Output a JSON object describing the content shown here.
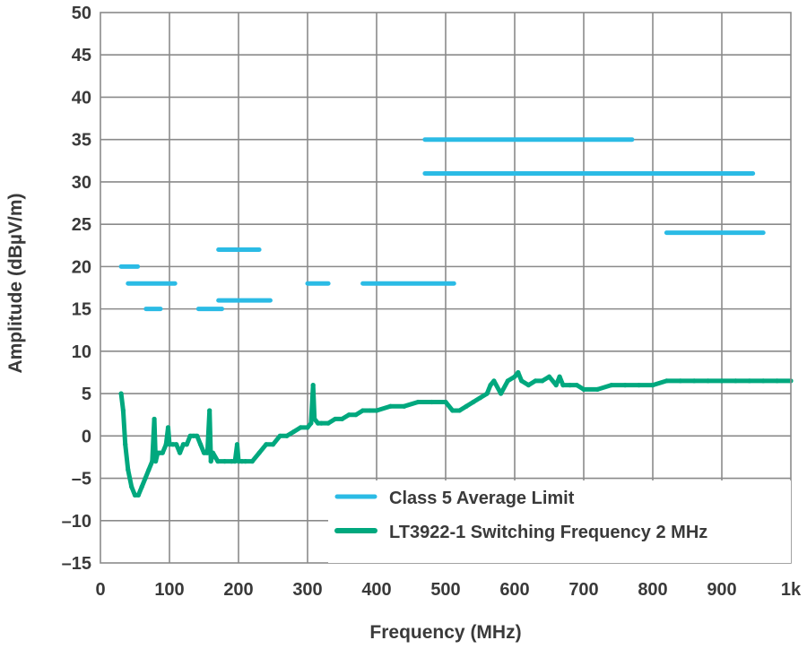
{
  "chart_data": {
    "type": "line",
    "title": "",
    "xlabel": "Frequency (MHz)",
    "ylabel": "Amplitude (dBµV/m)",
    "xlim": [
      0,
      1000
    ],
    "ylim": [
      -15,
      50
    ],
    "grid": true,
    "legend_position": "bottom-right",
    "x_ticks": [
      {
        "value": 0,
        "label": "0"
      },
      {
        "value": 100,
        "label": "100"
      },
      {
        "value": 200,
        "label": "200"
      },
      {
        "value": 300,
        "label": "300"
      },
      {
        "value": 400,
        "label": "400"
      },
      {
        "value": 500,
        "label": "500"
      },
      {
        "value": 600,
        "label": "600"
      },
      {
        "value": 700,
        "label": "700"
      },
      {
        "value": 800,
        "label": "800"
      },
      {
        "value": 900,
        "label": "900"
      },
      {
        "value": 1000,
        "label": "1k"
      }
    ],
    "y_ticks": [
      {
        "value": 50,
        "label": "50"
      },
      {
        "value": 45,
        "label": "45"
      },
      {
        "value": 40,
        "label": "40"
      },
      {
        "value": 35,
        "label": "35"
      },
      {
        "value": 30,
        "label": "30"
      },
      {
        "value": 25,
        "label": "25"
      },
      {
        "value": 20,
        "label": "20"
      },
      {
        "value": 15,
        "label": "15"
      },
      {
        "value": 10,
        "label": "10"
      },
      {
        "value": 5,
        "label": "5"
      },
      {
        "value": 0,
        "label": "0"
      },
      {
        "value": -5,
        "label": "–5"
      },
      {
        "value": -10,
        "label": "–10"
      },
      {
        "value": -15,
        "label": "–15"
      }
    ],
    "series": [
      {
        "name": "Class 5 Average Limit",
        "color": "#2bbbe5",
        "segments": [
          {
            "x": [
              30,
              54
            ],
            "y": 20
          },
          {
            "x": [
              40,
              108
            ],
            "y": 18
          },
          {
            "x": [
              66,
              87
            ],
            "y": 15
          },
          {
            "x": [
              142,
              176
            ],
            "y": 15
          },
          {
            "x": [
              171,
              246
            ],
            "y": 16
          },
          {
            "x": [
              171,
              230
            ],
            "y": 22
          },
          {
            "x": [
              300,
              330
            ],
            "y": 18
          },
          {
            "x": [
              380,
              512
            ],
            "y": 18
          },
          {
            "x": [
              470,
              770
            ],
            "y": 35
          },
          {
            "x": [
              470,
              945
            ],
            "y": 31
          },
          {
            "x": [
              820,
              960
            ],
            "y": 24
          }
        ]
      },
      {
        "name": "LT3922-1 Switching Frequency 2 MHz",
        "color": "#00a87e",
        "x": [
          30,
          33,
          36,
          40,
          45,
          50,
          55,
          60,
          65,
          70,
          75,
          78,
          80,
          83,
          86,
          90,
          95,
          98,
          100,
          105,
          110,
          115,
          120,
          125,
          130,
          135,
          140,
          145,
          150,
          155,
          158,
          160,
          163,
          170,
          180,
          190,
          195,
          198,
          200,
          205,
          210,
          220,
          230,
          240,
          250,
          260,
          270,
          280,
          290,
          300,
          305,
          308,
          310,
          315,
          320,
          330,
          340,
          350,
          360,
          370,
          380,
          390,
          400,
          420,
          440,
          460,
          480,
          500,
          510,
          520,
          530,
          540,
          550,
          560,
          565,
          570,
          580,
          590,
          600,
          605,
          610,
          620,
          630,
          640,
          650,
          660,
          665,
          670,
          680,
          690,
          700,
          720,
          740,
          760,
          780,
          800,
          820,
          840,
          860,
          880,
          900,
          920,
          940,
          960,
          980,
          1000
        ],
        "y": [
          5,
          3,
          -1,
          -4,
          -6,
          -7,
          -7,
          -6,
          -5,
          -4,
          -3,
          2,
          -3,
          -2,
          -2,
          -2,
          -1,
          1,
          -1,
          -1,
          -1,
          -2,
          -1,
          -1,
          0,
          0,
          0,
          -1,
          -2,
          -2,
          3,
          -3,
          -2,
          -3,
          -3,
          -3,
          -3,
          -1,
          -3,
          -3,
          -3,
          -3,
          -2,
          -1,
          -1,
          0,
          0,
          0.5,
          1,
          1,
          1.5,
          6,
          2,
          1.5,
          1.5,
          1.5,
          2,
          2,
          2.5,
          2.5,
          3,
          3,
          3,
          3.5,
          3.5,
          4,
          4,
          4,
          3,
          3,
          3.5,
          4,
          4.5,
          5,
          6,
          6.5,
          5,
          6.5,
          7,
          7.5,
          6.5,
          6,
          6.5,
          6.5,
          7,
          6,
          7,
          6,
          6,
          6,
          5.5,
          5.5,
          6,
          6,
          6,
          6,
          6.5,
          6.5,
          6.5,
          6.5,
          6.5,
          6.5,
          6.5,
          6.5,
          6.5,
          6.5
        ]
      }
    ]
  }
}
